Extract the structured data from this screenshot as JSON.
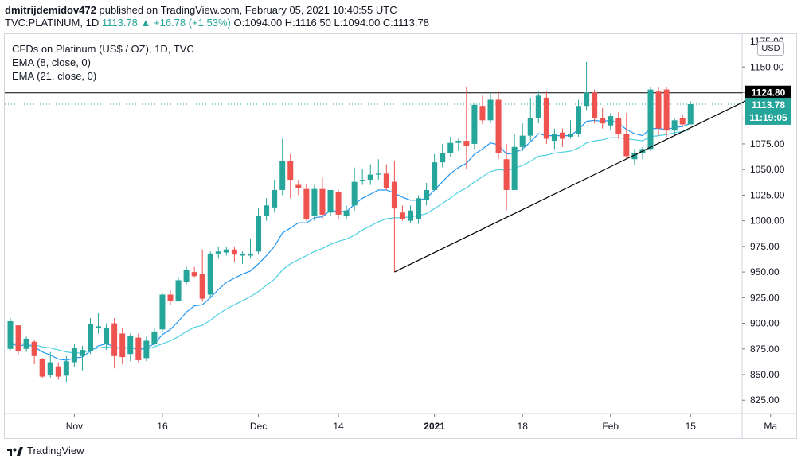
{
  "header": {
    "author": "dmitrijdemidov472",
    "published_text": " published on TradingView.com, February 05, 2021 10:40:55 UTC",
    "symbol": "TVC:PLATINUM, 1D",
    "change": "1113.78 ▲ +16.78 (+1.53%)",
    "ohlc": "O:1094.00 H:1116.50 L:1094.00 C:1113.78"
  },
  "legend": {
    "title": "CFDs on Platinum (US$ / OZ), 1D, TVC",
    "ema8": "EMA (8, close, 0)",
    "ema21": "EMA (21, close, 0)"
  },
  "currency_button": "USD",
  "footer": {
    "brand": "TradingView"
  },
  "colors": {
    "up": "#26a69a",
    "down": "#ef5350",
    "ema8": "#2196f3",
    "ema21": "#4dd0e1",
    "trendline": "#000000",
    "hline": "#000000",
    "current_price": "#26a69a"
  },
  "chart_data": {
    "type": "candlestick",
    "title": "CFDs on Platinum (US$ / OZ), 1D, TVC",
    "ylim": [
      812,
      1182
    ],
    "y_ticks": [
      825,
      850,
      875,
      900,
      925,
      950,
      975,
      1000,
      1025,
      1050,
      1075,
      1100,
      1125,
      1150
    ],
    "y_tick_labels": [
      "825.00",
      "850.00",
      "875.00",
      "900.00",
      "925.00",
      "950.00",
      "975.00",
      "1000.00",
      "1025.00",
      "1050.00",
      "1075.00",
      "1100.00",
      "1125.00",
      "1150.00"
    ],
    "top_cut_label": "1175.00",
    "x_ticks": [
      {
        "label": "Nov",
        "index": 8,
        "bold": false
      },
      {
        "label": "16",
        "index": 19,
        "bold": false
      },
      {
        "label": "Dec",
        "index": 31,
        "bold": false
      },
      {
        "label": "14",
        "index": 41,
        "bold": false
      },
      {
        "label": "2021",
        "index": 53,
        "bold": true
      },
      {
        "label": "18",
        "index": 64,
        "bold": false
      },
      {
        "label": "Feb",
        "index": 75,
        "bold": false
      },
      {
        "label": "15",
        "index": 85,
        "bold": false
      },
      {
        "label": "Ma",
        "index": 95,
        "bold": false
      }
    ],
    "candles": [
      {
        "o": 875,
        "h": 905,
        "l": 873,
        "c": 902
      },
      {
        "o": 898,
        "h": 898,
        "l": 870,
        "c": 873
      },
      {
        "o": 875,
        "h": 887,
        "l": 872,
        "c": 885
      },
      {
        "o": 882,
        "h": 884,
        "l": 860,
        "c": 868
      },
      {
        "o": 865,
        "h": 866,
        "l": 847,
        "c": 848
      },
      {
        "o": 850,
        "h": 872,
        "l": 847,
        "c": 862
      },
      {
        "o": 858,
        "h": 862,
        "l": 845,
        "c": 848
      },
      {
        "o": 849,
        "h": 868,
        "l": 843,
        "c": 863
      },
      {
        "o": 862,
        "h": 880,
        "l": 857,
        "c": 876
      },
      {
        "o": 868,
        "h": 878,
        "l": 854,
        "c": 874
      },
      {
        "o": 873,
        "h": 905,
        "l": 870,
        "c": 899
      },
      {
        "o": 895,
        "h": 910,
        "l": 890,
        "c": 897
      },
      {
        "o": 880,
        "h": 900,
        "l": 874,
        "c": 895
      },
      {
        "o": 900,
        "h": 905,
        "l": 856,
        "c": 868
      },
      {
        "o": 890,
        "h": 895,
        "l": 860,
        "c": 867
      },
      {
        "o": 870,
        "h": 890,
        "l": 863,
        "c": 888
      },
      {
        "o": 886,
        "h": 890,
        "l": 862,
        "c": 864
      },
      {
        "o": 866,
        "h": 887,
        "l": 863,
        "c": 883
      },
      {
        "o": 880,
        "h": 895,
        "l": 878,
        "c": 892
      },
      {
        "o": 894,
        "h": 930,
        "l": 891,
        "c": 928
      },
      {
        "o": 928,
        "h": 932,
        "l": 918,
        "c": 922
      },
      {
        "o": 922,
        "h": 945,
        "l": 921,
        "c": 942
      },
      {
        "o": 940,
        "h": 955,
        "l": 938,
        "c": 952
      },
      {
        "o": 950,
        "h": 955,
        "l": 945,
        "c": 946
      },
      {
        "o": 948,
        "h": 972,
        "l": 921,
        "c": 924
      },
      {
        "o": 928,
        "h": 970,
        "l": 925,
        "c": 968
      },
      {
        "o": 968,
        "h": 975,
        "l": 963,
        "c": 970
      },
      {
        "o": 969,
        "h": 975,
        "l": 966,
        "c": 972
      },
      {
        "o": 972,
        "h": 975,
        "l": 960,
        "c": 967
      },
      {
        "o": 966,
        "h": 970,
        "l": 958,
        "c": 968
      },
      {
        "o": 966,
        "h": 982,
        "l": 963,
        "c": 968
      },
      {
        "o": 970,
        "h": 1012,
        "l": 968,
        "c": 1005
      },
      {
        "o": 1005,
        "h": 1022,
        "l": 1000,
        "c": 1015
      },
      {
        "o": 1013,
        "h": 1040,
        "l": 1008,
        "c": 1030
      },
      {
        "o": 1030,
        "h": 1080,
        "l": 1025,
        "c": 1058
      },
      {
        "o": 1058,
        "h": 1065,
        "l": 1022,
        "c": 1040
      },
      {
        "o": 1035,
        "h": 1040,
        "l": 1025,
        "c": 1032
      },
      {
        "o": 1031,
        "h": 1036,
        "l": 1000,
        "c": 1002
      },
      {
        "o": 1005,
        "h": 1035,
        "l": 1000,
        "c": 1031
      },
      {
        "o": 1031,
        "h": 1042,
        "l": 1002,
        "c": 1006
      },
      {
        "o": 1008,
        "h": 1030,
        "l": 1005,
        "c": 1030
      },
      {
        "o": 1028,
        "h": 1030,
        "l": 1002,
        "c": 1006
      },
      {
        "o": 1005,
        "h": 1015,
        "l": 1002,
        "c": 1010
      },
      {
        "o": 1015,
        "h": 1052,
        "l": 1010,
        "c": 1038
      },
      {
        "o": 1040,
        "h": 1050,
        "l": 1035,
        "c": 1040
      },
      {
        "o": 1040,
        "h": 1055,
        "l": 1035,
        "c": 1045
      },
      {
        "o": 1045,
        "h": 1060,
        "l": 1040,
        "c": 1046
      },
      {
        "o": 1046,
        "h": 1055,
        "l": 1030,
        "c": 1032
      },
      {
        "o": 1038,
        "h": 1058,
        "l": 950,
        "c": 1012
      },
      {
        "o": 1008,
        "h": 1015,
        "l": 1000,
        "c": 1002
      },
      {
        "o": 1000,
        "h": 1015,
        "l": 998,
        "c": 1010
      },
      {
        "o": 1002,
        "h": 1025,
        "l": 997,
        "c": 1022
      },
      {
        "o": 1020,
        "h": 1037,
        "l": 1015,
        "c": 1030
      },
      {
        "o": 1030,
        "h": 1065,
        "l": 1030,
        "c": 1057
      },
      {
        "o": 1057,
        "h": 1075,
        "l": 1052,
        "c": 1066
      },
      {
        "o": 1066,
        "h": 1082,
        "l": 1062,
        "c": 1076
      },
      {
        "o": 1076,
        "h": 1080,
        "l": 1068,
        "c": 1078
      },
      {
        "o": 1078,
        "h": 1131,
        "l": 1050,
        "c": 1073
      },
      {
        "o": 1075,
        "h": 1115,
        "l": 1070,
        "c": 1113
      },
      {
        "o": 1112,
        "h": 1122,
        "l": 1094,
        "c": 1098
      },
      {
        "o": 1098,
        "h": 1125,
        "l": 1095,
        "c": 1118
      },
      {
        "o": 1118,
        "h": 1126,
        "l": 1060,
        "c": 1066
      },
      {
        "o": 1060,
        "h": 1075,
        "l": 1010,
        "c": 1030
      },
      {
        "o": 1030,
        "h": 1085,
        "l": 1030,
        "c": 1072
      },
      {
        "o": 1072,
        "h": 1095,
        "l": 1068,
        "c": 1083
      },
      {
        "o": 1083,
        "h": 1120,
        "l": 1078,
        "c": 1100
      },
      {
        "o": 1100,
        "h": 1126,
        "l": 1095,
        "c": 1122
      },
      {
        "o": 1120,
        "h": 1126,
        "l": 1075,
        "c": 1080
      },
      {
        "o": 1078,
        "h": 1090,
        "l": 1070,
        "c": 1085
      },
      {
        "o": 1086,
        "h": 1090,
        "l": 1072,
        "c": 1080
      },
      {
        "o": 1082,
        "h": 1098,
        "l": 1080,
        "c": 1085
      },
      {
        "o": 1085,
        "h": 1118,
        "l": 1082,
        "c": 1112
      },
      {
        "o": 1112,
        "h": 1155,
        "l": 1108,
        "c": 1125
      },
      {
        "o": 1125,
        "h": 1128,
        "l": 1095,
        "c": 1100
      },
      {
        "o": 1100,
        "h": 1110,
        "l": 1090,
        "c": 1095
      },
      {
        "o": 1093,
        "h": 1105,
        "l": 1088,
        "c": 1102
      },
      {
        "o": 1100,
        "h": 1106,
        "l": 1080,
        "c": 1085
      },
      {
        "o": 1085,
        "h": 1105,
        "l": 1060,
        "c": 1063
      },
      {
        "o": 1060,
        "h": 1070,
        "l": 1054,
        "c": 1066
      },
      {
        "o": 1066,
        "h": 1072,
        "l": 1060,
        "c": 1070
      },
      {
        "o": 1070,
        "h": 1130,
        "l": 1068,
        "c": 1128
      },
      {
        "o": 1126,
        "h": 1130,
        "l": 1083,
        "c": 1090
      },
      {
        "o": 1128,
        "h": 1130,
        "l": 1082,
        "c": 1088
      },
      {
        "o": 1088,
        "h": 1100,
        "l": 1083,
        "c": 1098
      },
      {
        "o": 1100,
        "h": 1103,
        "l": 1092,
        "c": 1094
      },
      {
        "o": 1094,
        "h": 1116.5,
        "l": 1094,
        "c": 1113.78
      }
    ],
    "ema8": [
      880,
      878,
      879,
      877,
      872,
      869,
      865,
      864,
      866,
      867,
      873,
      878,
      880,
      877,
      875,
      877,
      874,
      876,
      880,
      889,
      894,
      902,
      911,
      917,
      918,
      925,
      933,
      940,
      944,
      948,
      951,
      958,
      966,
      975,
      988,
      993,
      998,
      998,
      1003,
      1004,
      1010,
      1009,
      1009,
      1016,
      1022,
      1026,
      1030,
      1030,
      1027,
      1023,
      1020,
      1020,
      1022,
      1030,
      1038,
      1046,
      1052,
      1056,
      1065,
      1070,
      1076,
      1074,
      1065,
      1066,
      1070,
      1077,
      1085,
      1083,
      1083,
      1083,
      1083,
      1089,
      1097,
      1098,
      1097,
      1098,
      1095,
      1089,
      1085,
      1083,
      1090,
      1090,
      1089,
      1091,
      1092,
      1095
    ],
    "ema21": [
      880,
      880,
      880,
      879,
      877,
      876,
      874,
      872,
      871,
      871,
      874,
      876,
      877,
      876,
      876,
      876,
      875,
      875,
      877,
      880,
      883,
      887,
      892,
      896,
      898,
      903,
      909,
      914,
      918,
      922,
      926,
      931,
      937,
      943,
      952,
      958,
      962,
      966,
      970,
      973,
      977,
      980,
      982,
      986,
      991,
      995,
      999,
      1002,
      1003,
      1003,
      1004,
      1005,
      1007,
      1012,
      1017,
      1022,
      1028,
      1032,
      1038,
      1043,
      1048,
      1050,
      1049,
      1051,
      1054,
      1058,
      1063,
      1064,
      1066,
      1067,
      1068,
      1071,
      1076,
      1078,
      1079,
      1081,
      1081,
      1080,
      1079,
      1078,
      1082,
      1083,
      1084,
      1086,
      1087,
      1089
    ],
    "trendline": [
      {
        "index": 48,
        "value": 950
      },
      {
        "index": 94,
        "value": 1125
      }
    ],
    "horizontal_line": {
      "value": 1124.8,
      "label": "1124.80"
    },
    "current_price": {
      "value": 1113.78,
      "label": "1113.78",
      "countdown": "11:19:05"
    }
  }
}
